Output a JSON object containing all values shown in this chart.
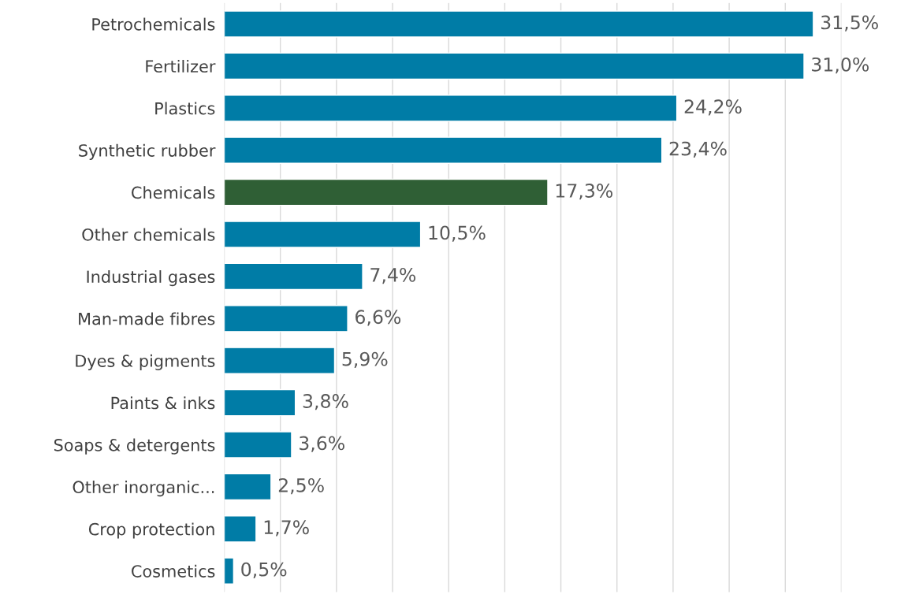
{
  "chart_data": {
    "type": "bar",
    "orientation": "horizontal",
    "categories": [
      "Petrochemicals",
      "Fertilizer",
      "Plastics",
      "Synthetic rubber",
      "Chemicals",
      "Other chemicals",
      "Industrial gases",
      "Man-made fibres",
      "Dyes & pigments",
      "Paints & inks",
      "Soaps & detergents",
      "Other inorganic...",
      "Crop protection",
      "Cosmetics"
    ],
    "values": [
      31.5,
      31.0,
      24.2,
      23.4,
      17.3,
      10.5,
      7.4,
      6.6,
      5.9,
      3.8,
      3.6,
      2.5,
      1.7,
      0.5
    ],
    "colors": [
      "#007ca6",
      "#007ca6",
      "#007ca6",
      "#007ca6",
      "#2f5f35",
      "#007ca6",
      "#007ca6",
      "#007ca6",
      "#007ca6",
      "#007ca6",
      "#007ca6",
      "#007ca6",
      "#007ca6",
      "#007ca6"
    ],
    "value_labels": [
      "31,5%",
      "31,0%",
      "24,2%",
      "23,4%",
      "17,3%",
      "10,5%",
      "7,4%",
      "6,6%",
      "5,9%",
      "3,8%",
      "3,6%",
      "2,5%",
      "1,7%",
      "0,5%"
    ],
    "xlim": [
      0,
      33
    ],
    "xticks": [
      {
        "value": 0,
        "label": null
      },
      {
        "value": 3,
        "label": null
      },
      {
        "value": 6,
        "label": null
      },
      {
        "value": 9,
        "label": null
      },
      {
        "value": 12,
        "label": null
      },
      {
        "value": 15,
        "label": null
      },
      {
        "value": 18,
        "label": null
      },
      {
        "value": 21,
        "label": null
      },
      {
        "value": 24,
        "label": null
      },
      {
        "value": 27,
        "label": null
      },
      {
        "value": 30,
        "label": null
      },
      {
        "value": 33,
        "label": null
      }
    ],
    "grid": "x",
    "tick_labels": "y"
  }
}
